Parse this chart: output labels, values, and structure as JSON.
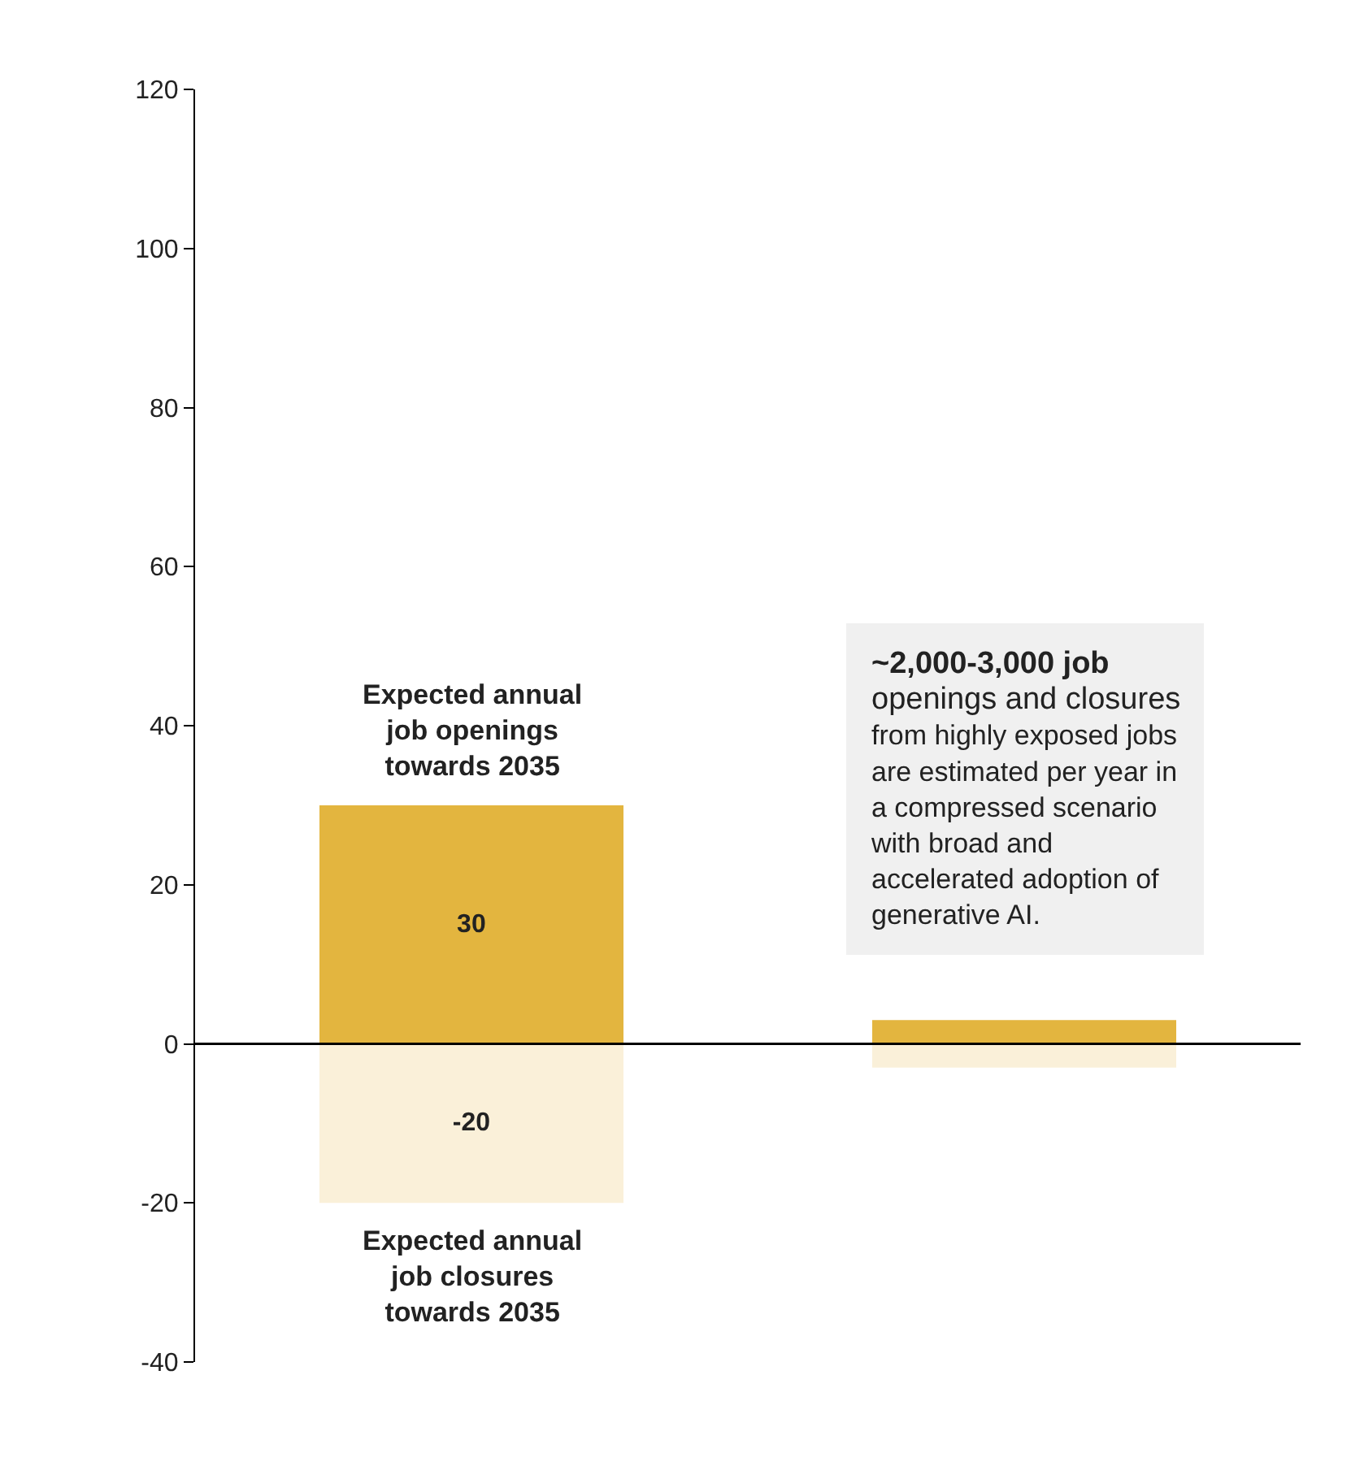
{
  "chart_data": {
    "type": "bar",
    "stacked": true,
    "categories": [
      null,
      null
    ],
    "series": [
      {
        "color": "#e3b53f",
        "values": [
          30,
          3
        ],
        "value_labels": [
          "30",
          null
        ]
      },
      {
        "color": "#faf0d9",
        "values": [
          -20,
          -3
        ],
        "value_labels": [
          "-20",
          null
        ]
      }
    ],
    "ylim": [
      -40,
      120
    ],
    "yticks": [
      -40,
      -20,
      0,
      20,
      40,
      60,
      80,
      100,
      120
    ],
    "grid": false,
    "legend": false,
    "ref_lines": [
      {
        "axis": "y",
        "value": 0,
        "color": "#000000"
      }
    ],
    "tick_labels": "y",
    "annotations": [
      "Expected annual\njob openings\ntowards 2035",
      "Expected annual\njob closures\ntowards 2035",
      "~2,000-3,000 job\nopenings and closures\nfrom highly exposed jobs\nare estimated per year in\na compressed scenario\nwith broad and\naccelerated adoption of\ngenerative AI."
    ]
  }
}
